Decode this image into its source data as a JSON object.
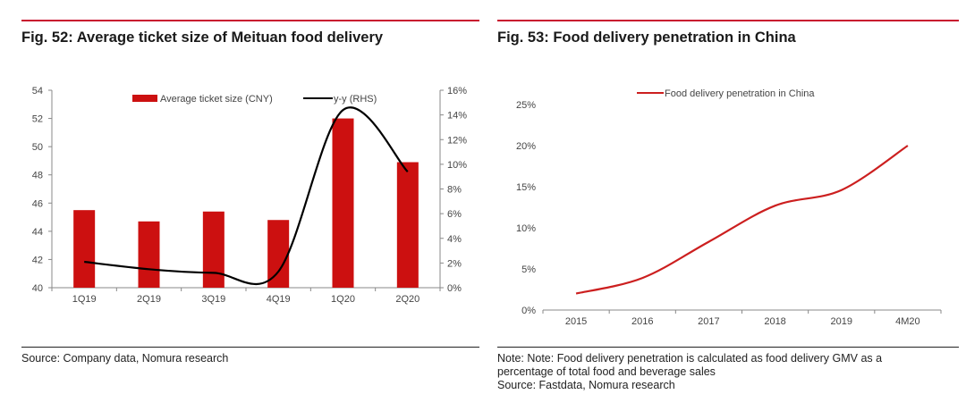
{
  "figures": [
    {
      "title": "Fig. 52: Average ticket size of Meituan food delivery",
      "source": "Source: Company data, Nomura research",
      "chart_data": {
        "type": "bar",
        "categories": [
          "1Q19",
          "2Q19",
          "3Q19",
          "4Q19",
          "1Q20",
          "2Q20"
        ],
        "series": [
          {
            "name": "Average ticket size (CNY)",
            "type": "bar",
            "axis": "left",
            "color": "#cc1010",
            "values": [
              45.5,
              44.7,
              45.4,
              44.8,
              52.0,
              48.9
            ]
          },
          {
            "name": "y-y (RHS)",
            "type": "line",
            "axis": "right",
            "color": "#000000",
            "values": [
              2.1,
              1.5,
              1.2,
              1.3,
              14.4,
              9.4
            ]
          }
        ],
        "ylim": [
          40,
          54
        ],
        "yticks": [
          "40",
          "42",
          "44",
          "46",
          "48",
          "50",
          "52",
          "54"
        ],
        "y2lim": [
          0,
          16
        ],
        "y2ticks": [
          "0%",
          "2%",
          "4%",
          "6%",
          "8%",
          "10%",
          "12%",
          "14%",
          "16%"
        ],
        "legend": "top",
        "grid": false
      }
    },
    {
      "title": "Fig. 53: Food delivery penetration in China",
      "note_lines": [
        "Note: Note: Food delivery penetration is calculated as food delivery GMV as a",
        "percentage of total food and beverage sales",
        "Source: Fastdata, Nomura research"
      ],
      "chart_data": {
        "type": "line",
        "categories": [
          "2015",
          "2016",
          "2017",
          "2018",
          "2019",
          "4M20"
        ],
        "series": [
          {
            "name": "Food delivery penetration in China",
            "color": "#cc1f1f",
            "values": [
              2.0,
              3.9,
              8.3,
              12.7,
              14.6,
              20.0
            ]
          }
        ],
        "ylim": [
          0,
          25
        ],
        "yticks": [
          "0%",
          "5%",
          "10%",
          "15%",
          "20%",
          "25%"
        ],
        "legend": "top",
        "grid": false
      }
    }
  ]
}
